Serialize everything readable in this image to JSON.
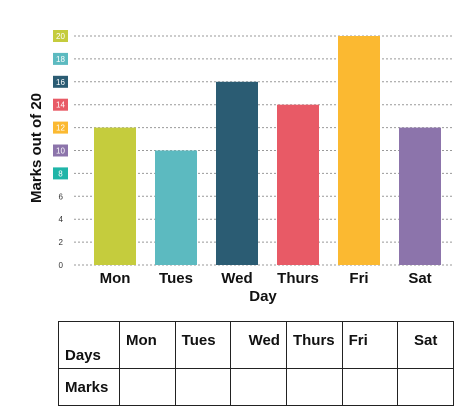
{
  "chart_data": {
    "type": "bar",
    "categories": [
      "Mon",
      "Tues",
      "Wed",
      "Thurs",
      "Fri",
      "Sat"
    ],
    "values": [
      12,
      10,
      16,
      14,
      20,
      12
    ],
    "bar_colors": [
      "#c5cc3d",
      "#5cbac0",
      "#2b5c73",
      "#e85a66",
      "#fbb931",
      "#8c74ab"
    ],
    "xlabel": "Day",
    "ylabel": "Marks out of 20",
    "ylim": [
      0,
      20
    ],
    "yticks": [
      0,
      2,
      4,
      6,
      8,
      10,
      12,
      14,
      16,
      18,
      20
    ],
    "tick_badge_colors": {
      "8": "#1fb5a8",
      "10": "#8c74ab",
      "12": "#fbb931",
      "14": "#e85a66",
      "16": "#2b5c73",
      "18": "#5cbac0",
      "20": "#c5cc3d"
    },
    "grid": true
  },
  "table": {
    "header_label": "Days",
    "days": [
      "Mon",
      "Tues",
      "Wed",
      "Thurs",
      "Fri",
      "Sat"
    ],
    "row_label": "Marks"
  }
}
